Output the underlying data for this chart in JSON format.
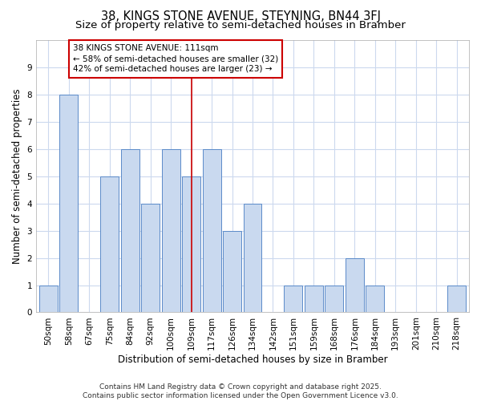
{
  "title1": "38, KINGS STONE AVENUE, STEYNING, BN44 3FJ",
  "title2": "Size of property relative to semi-detached houses in Bramber",
  "xlabel": "Distribution of semi-detached houses by size in Bramber",
  "ylabel": "Number of semi-detached properties",
  "categories": [
    "50sqm",
    "58sqm",
    "67sqm",
    "75sqm",
    "84sqm",
    "92sqm",
    "100sqm",
    "109sqm",
    "117sqm",
    "126sqm",
    "134sqm",
    "142sqm",
    "151sqm",
    "159sqm",
    "168sqm",
    "176sqm",
    "184sqm",
    "193sqm",
    "201sqm",
    "210sqm",
    "218sqm"
  ],
  "values": [
    1,
    8,
    0,
    5,
    6,
    4,
    6,
    5,
    6,
    3,
    4,
    0,
    1,
    1,
    1,
    2,
    1,
    0,
    0,
    0,
    1
  ],
  "bar_color": "#c9d9ef",
  "bar_edge_color": "#5b8bc9",
  "highlight_index": 7,
  "highlight_line_color": "#cc0000",
  "annotation_text": "38 KINGS STONE AVENUE: 111sqm\n← 58% of semi-detached houses are smaller (32)\n42% of semi-detached houses are larger (23) →",
  "annotation_box_edge_color": "#cc0000",
  "ylim": [
    0,
    10
  ],
  "yticks": [
    0,
    1,
    2,
    3,
    4,
    5,
    6,
    7,
    8,
    9,
    10
  ],
  "plot_bg_color": "#ffffff",
  "fig_bg_color": "#ffffff",
  "grid_color": "#ccd9ee",
  "footer_text": "Contains HM Land Registry data © Crown copyright and database right 2025.\nContains public sector information licensed under the Open Government Licence v3.0.",
  "title1_fontsize": 10.5,
  "title2_fontsize": 9.5,
  "axis_label_fontsize": 8.5,
  "tick_fontsize": 7.5,
  "annotation_fontsize": 7.5,
  "footer_fontsize": 6.5
}
